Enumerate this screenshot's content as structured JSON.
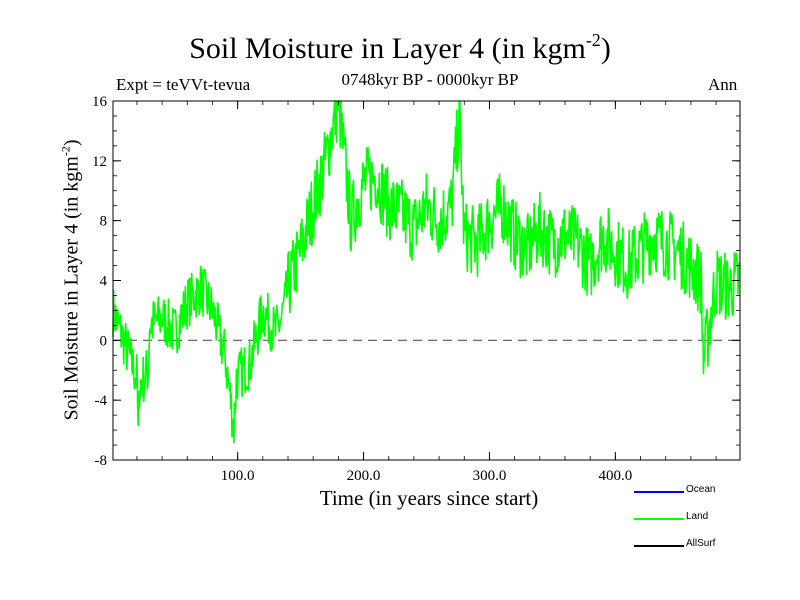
{
  "chart_data": {
    "type": "line",
    "title": "Soil Moisture in Layer 4 (in kgm",
    "title_sup": "-2",
    "title_close": ")",
    "subtitle": "0748kyr BP - 0000kyr BP",
    "expt_label": "Expt = teVVt-tevua",
    "season_label": "Ann",
    "xlabel": "Time (in years since start)",
    "ylabel": "Soil Moisture in Layer 4 (in kgm",
    "ylabel_sup": "-2",
    "ylabel_close": ")",
    "xlim": [
      1,
      499
    ],
    "ylim": [
      -8,
      16
    ],
    "x_ticks": [
      100.0,
      200.0,
      300.0,
      400.0
    ],
    "x_tick_labels": [
      "100.0",
      "200.0",
      "300.0",
      "400.0"
    ],
    "y_ticks": [
      -8,
      -4,
      0,
      4,
      8,
      12,
      16
    ],
    "y_tick_labels": [
      "-8",
      "-4",
      "0",
      "4",
      "8",
      "12",
      "16"
    ],
    "zero_line": 0,
    "legend_placement": "bottom-right",
    "series": [
      {
        "name": "Ocean",
        "color": "#0000ff",
        "values": []
      },
      {
        "name": "Land",
        "color": "#00ff00",
        "x": [
          1,
          20,
          21,
          22,
          29,
          30,
          40,
          50,
          60,
          71,
          80,
          90,
          97,
          99,
          110,
          120,
          130,
          135,
          140,
          150,
          160,
          170,
          180,
          190,
          200,
          210,
          220,
          230,
          240,
          250,
          260,
          270,
          276,
          280,
          290,
          300,
          310,
          320,
          330,
          340,
          350,
          360,
          370,
          380,
          390,
          400,
          410,
          420,
          430,
          440,
          450,
          460,
          468,
          470,
          480,
          490,
          499
        ],
        "values": [
          2.0,
          -2.5,
          -6.5,
          -3.0,
          -2.0,
          1.0,
          1.5,
          0.5,
          2.5,
          3.5,
          2.0,
          -1.0,
          -5.8,
          -2.5,
          -1.5,
          2.0,
          0.5,
          1.5,
          3.5,
          6.0,
          9.0,
          12.0,
          16.0,
          8.0,
          10.5,
          11.0,
          9.0,
          8.5,
          7.5,
          9.0,
          8.0,
          9.0,
          15.0,
          7.0,
          6.5,
          8.0,
          9.0,
          7.0,
          6.0,
          7.5,
          6.5,
          7.0,
          6.5,
          5.0,
          7.0,
          6.0,
          5.0,
          6.0,
          7.0,
          6.5,
          6.0,
          5.0,
          4.0,
          -1.5,
          4.0,
          3.5,
          4.0
        ]
      }
    ],
    "legend": [
      {
        "name": "Ocean",
        "color": "#0000ff"
      },
      {
        "name": "Land",
        "color": "#00ff00"
      },
      {
        "name": "AllSurf",
        "color": "#000000"
      }
    ]
  }
}
